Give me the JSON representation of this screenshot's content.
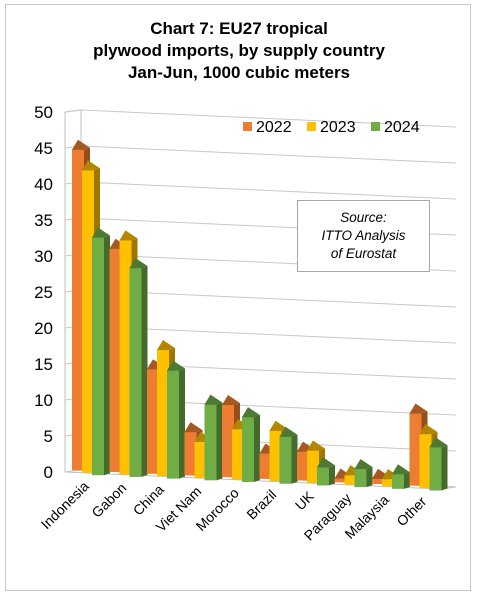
{
  "chart_data": {
    "type": "bar",
    "title": [
      "Chart 7: EU27 tropical",
      "plywood imports, by supply country",
      "Jan-Jun, 1000 cubic meters"
    ],
    "categories": [
      "Indonesia",
      "Gabon",
      "China",
      "Viet Nam",
      "Morocco",
      "Brazil",
      "UK",
      "Paraguay",
      "Malaysia",
      "Other"
    ],
    "series": [
      {
        "name": "2022",
        "color": "#ed7d31",
        "values": [
          44.5,
          31,
          14.5,
          6,
          10,
          3.5,
          4,
          0.5,
          0.7,
          10
        ]
      },
      {
        "name": "2023",
        "color": "#ffc000",
        "values": [
          42,
          32.5,
          17.5,
          5,
          7,
          7,
          4.5,
          1.3,
          1,
          7.5
        ]
      },
      {
        "name": "2024",
        "color": "#70ad47",
        "values": [
          33,
          29,
          15,
          10.5,
          9,
          6.5,
          2.5,
          2.5,
          2,
          6
        ]
      }
    ],
    "yticks": [
      "0",
      "5",
      "10",
      "15",
      "20",
      "25",
      "30",
      "35",
      "40",
      "45",
      "50"
    ],
    "ylim": [
      0,
      50
    ],
    "grid": true,
    "legend_position": "top-right",
    "annotation": [
      "Source:",
      "ITTO Analysis",
      "of Eurostat"
    ]
  }
}
